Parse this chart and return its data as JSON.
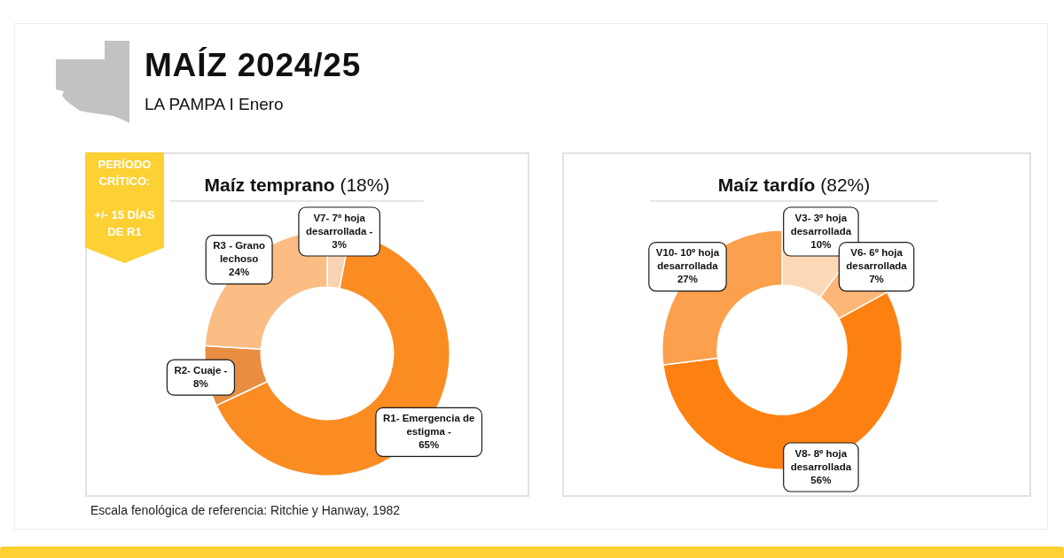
{
  "chart_data": [
    {
      "type": "other",
      "title": "MAÍZ 2024/25",
      "subtitle": "LA PAMPA I Enero"
    },
    {
      "type": "donut",
      "title": "Maíz temprano (18%)",
      "categories": [
        "V7- 7º hoja desarrollada -",
        "R1- Emergencia de estigma -",
        "R2- Cuaje -",
        "R3 - Grano lechoso"
      ],
      "values": [
        3,
        65,
        8,
        24
      ],
      "colors": [
        "#f9d3b2",
        "#fb8c22",
        "#e98d42",
        "#fbbd83"
      ],
      "value_labels": [
        "3%",
        "65%",
        "8%",
        "24%"
      ],
      "annotations": [
        "PERÍODO CRÍTICO:",
        "+/- 15 DÍAS DE R1",
        "Escala fenológica de referencia: Ritchie y Hanway, 1982"
      ]
    },
    {
      "type": "donut",
      "title": "Maíz tardío (82%)",
      "categories": [
        "V3- 3º hoja desarrollada",
        "V6- 6º hoja desarrollada",
        "V8- 8º hoja desarrollada",
        "V10- 10º hoja desarrollada"
      ],
      "values": [
        10,
        7,
        56,
        27
      ],
      "colors": [
        "#fdd8b6",
        "#fcb678",
        "#fd8110",
        "#fba04c"
      ],
      "value_labels": [
        "10%",
        "7%",
        "56%",
        "27%"
      ]
    }
  ]
}
